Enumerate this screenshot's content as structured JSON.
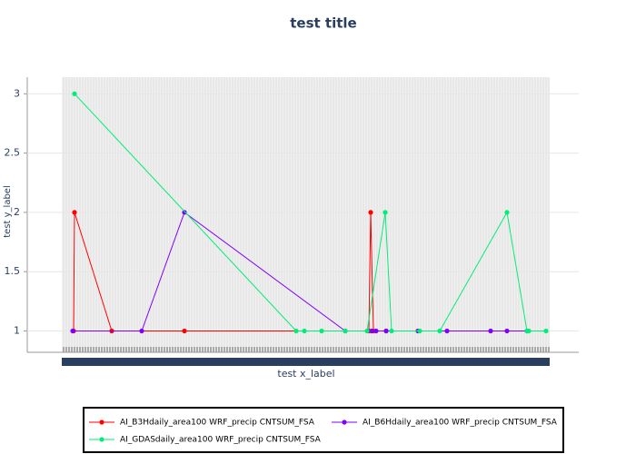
{
  "chart_data": {
    "type": "line",
    "title": "test title",
    "x_label": "test x_label",
    "y_label": "test y_label",
    "xlim": [
      -38,
      569
    ],
    "ylim": [
      0.82,
      3.14
    ],
    "yticks": [
      1,
      1.5,
      2,
      2.5,
      3
    ],
    "grid": true,
    "series": [
      {
        "name": "AI_B3Hdaily_area100 WRF_precip CNTSUM_FSA",
        "color": "#ff0000",
        "x": [
          13,
          14,
          55,
          135,
          338,
          340,
          343,
          357
        ],
        "values": [
          1,
          2,
          1,
          1,
          1,
          2,
          1,
          1
        ]
      },
      {
        "name": "AI_B6Hdaily_area100 WRF_precip CNTSUM_FSA",
        "color": "#7f00ff",
        "x": [
          12,
          88,
          135,
          312,
          341,
          346,
          357,
          392,
          424,
          472,
          490,
          512
        ],
        "values": [
          1,
          1,
          2,
          1,
          1,
          1,
          1,
          1,
          1,
          1,
          1,
          1
        ]
      },
      {
        "name": "AI_GDASdaily_area100 WRF_precip CNTSUM_FSA",
        "color": "#00ee77",
        "x": [
          14,
          258,
          267,
          286,
          312,
          336,
          356,
          363,
          394,
          416,
          490,
          512,
          514,
          533
        ],
        "values": [
          3,
          1,
          1,
          1,
          1,
          1,
          2,
          1,
          1,
          1,
          2,
          1,
          1,
          1
        ]
      }
    ]
  }
}
